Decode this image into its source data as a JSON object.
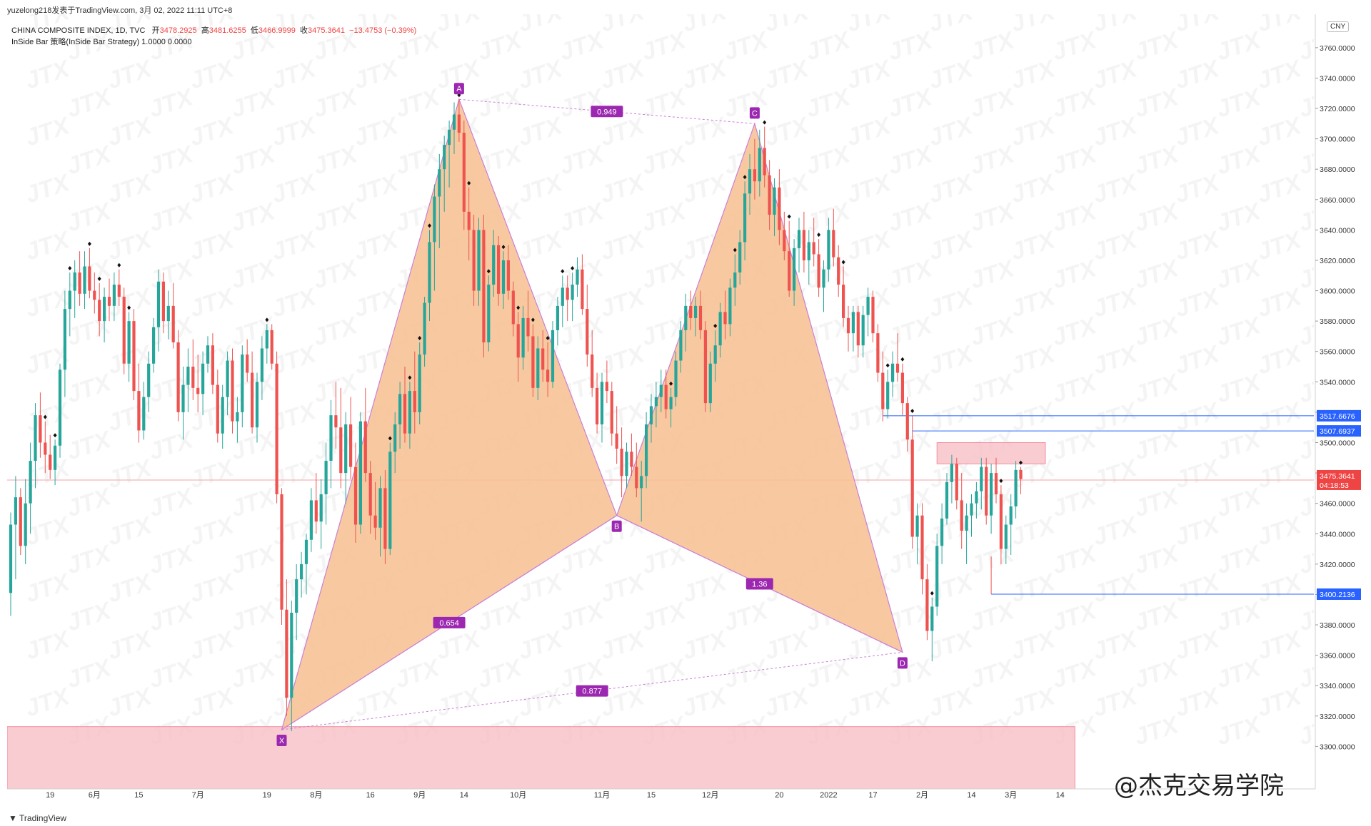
{
  "header": {
    "publisher": "yuzelong218发表于TradingView.com,  3月 02, 2022 11:11 UTC+8",
    "symbol_line": "CHINA COMPOSITE INDEX, 1D, TVC",
    "ohlc": {
      "open_label": "开",
      "open": "3478.2925",
      "high_label": "高",
      "high": "3481.6255",
      "low_label": "低",
      "low": "3466.9999",
      "close_label": "收",
      "close": "3475.3641",
      "change": "−13.4753 (−0.39%)"
    },
    "indicator_line": "InSide Bar 策略(InSide Bar Strategy)  1.0000  0.0000"
  },
  "currency_badge": "CNY",
  "footer_logo": "TradingView",
  "credit": "@杰克交易学院",
  "watermark_text": "JTX",
  "colors": {
    "up": "#26a69a",
    "down": "#ef5350",
    "pattern_fill": "#f7c08f",
    "pattern_stroke": "#c97fd6",
    "label_bg": "#9c27b0",
    "zone_fill": "#f8bfc6",
    "line_blue": "#2962ff",
    "price_red": "#ef4444"
  },
  "chart_data": {
    "type": "candlestick",
    "y_axis_ticks": [
      3300,
      3320,
      3340,
      3360,
      3380,
      3400,
      3420,
      3440,
      3460,
      3480,
      3500,
      3520,
      3540,
      3560,
      3580,
      3600,
      3620,
      3640,
      3660,
      3680,
      3700,
      3720,
      3740,
      3760
    ],
    "y_tick_format": "4dp",
    "ylim": [
      3272,
      3782
    ],
    "x_tick_labels": [
      {
        "index": 8,
        "label": "19"
      },
      {
        "index": 17,
        "label": "6月"
      },
      {
        "index": 26,
        "label": "15"
      },
      {
        "index": 38,
        "label": "7月"
      },
      {
        "index": 52,
        "label": "19"
      },
      {
        "index": 62,
        "label": "8月"
      },
      {
        "index": 73,
        "label": "16"
      },
      {
        "index": 83,
        "label": "9月"
      },
      {
        "index": 92,
        "label": "14"
      },
      {
        "index": 103,
        "label": "10月"
      },
      {
        "index": 120,
        "label": "11月"
      },
      {
        "index": 130,
        "label": "15"
      },
      {
        "index": 142,
        "label": "12月"
      },
      {
        "index": 156,
        "label": "20"
      },
      {
        "index": 166,
        "label": "2022"
      },
      {
        "index": 175,
        "label": "17"
      },
      {
        "index": 185,
        "label": "2月"
      },
      {
        "index": 195,
        "label": "14"
      },
      {
        "index": 203,
        "label": "3月"
      },
      {
        "index": 213,
        "label": "14"
      }
    ],
    "candles_ohlc": [
      [
        3401,
        3454,
        3386,
        3446
      ],
      [
        3446,
        3478,
        3410,
        3464
      ],
      [
        3464,
        3470,
        3426,
        3432
      ],
      [
        3432,
        3476,
        3420,
        3460
      ],
      [
        3460,
        3500,
        3440,
        3488
      ],
      [
        3488,
        3526,
        3470,
        3518
      ],
      [
        3518,
        3533,
        3490,
        3500
      ],
      [
        3500,
        3514,
        3480,
        3492
      ],
      [
        3492,
        3505,
        3476,
        3482
      ],
      [
        3482,
        3502,
        3472,
        3498
      ],
      [
        3498,
        3552,
        3490,
        3548
      ],
      [
        3548,
        3600,
        3530,
        3588
      ],
      [
        3588,
        3612,
        3570,
        3600
      ],
      [
        3600,
        3620,
        3582,
        3612
      ],
      [
        3612,
        3626,
        3590,
        3598
      ],
      [
        3598,
        3626,
        3588,
        3616
      ],
      [
        3616,
        3628,
        3595,
        3600
      ],
      [
        3600,
        3612,
        3585,
        3594
      ],
      [
        3594,
        3605,
        3570,
        3580
      ],
      [
        3580,
        3602,
        3566,
        3596
      ],
      [
        3596,
        3608,
        3580,
        3590
      ],
      [
        3590,
        3612,
        3580,
        3604
      ],
      [
        3604,
        3614,
        3590,
        3596
      ],
      [
        3596,
        3602,
        3545,
        3552
      ],
      [
        3552,
        3586,
        3540,
        3580
      ],
      [
        3580,
        3588,
        3528,
        3534
      ],
      [
        3534,
        3552,
        3500,
        3508
      ],
      [
        3508,
        3540,
        3502,
        3530
      ],
      [
        3530,
        3560,
        3520,
        3552
      ],
      [
        3552,
        3582,
        3546,
        3576
      ],
      [
        3576,
        3614,
        3560,
        3606
      ],
      [
        3606,
        3612,
        3572,
        3580
      ],
      [
        3580,
        3600,
        3568,
        3590
      ],
      [
        3590,
        3605,
        3562,
        3566
      ],
      [
        3566,
        3574,
        3514,
        3520
      ],
      [
        3520,
        3550,
        3502,
        3538
      ],
      [
        3538,
        3562,
        3520,
        3550
      ],
      [
        3550,
        3568,
        3528,
        3536
      ],
      [
        3536,
        3558,
        3520,
        3532
      ],
      [
        3532,
        3560,
        3518,
        3552
      ],
      [
        3552,
        3570,
        3546,
        3564
      ],
      [
        3564,
        3572,
        3532,
        3538
      ],
      [
        3538,
        3548,
        3500,
        3506
      ],
      [
        3506,
        3538,
        3496,
        3530
      ],
      [
        3530,
        3560,
        3518,
        3554
      ],
      [
        3554,
        3562,
        3506,
        3514
      ],
      [
        3514,
        3530,
        3500,
        3520
      ],
      [
        3520,
        3564,
        3510,
        3558
      ],
      [
        3558,
        3568,
        3540,
        3546
      ],
      [
        3546,
        3560,
        3506,
        3510
      ],
      [
        3510,
        3546,
        3500,
        3540
      ],
      [
        3540,
        3570,
        3528,
        3562
      ],
      [
        3562,
        3578,
        3552,
        3574
      ],
      [
        3574,
        3578,
        3548,
        3552
      ],
      [
        3552,
        3560,
        3460,
        3466
      ],
      [
        3466,
        3470,
        3380,
        3390
      ],
      [
        3390,
        3410,
        3320,
        3332
      ],
      [
        3332,
        3396,
        3310,
        3388
      ],
      [
        3388,
        3420,
        3370,
        3410
      ],
      [
        3410,
        3428,
        3398,
        3420
      ],
      [
        3420,
        3440,
        3400,
        3436
      ],
      [
        3436,
        3470,
        3428,
        3462
      ],
      [
        3462,
        3480,
        3440,
        3448
      ],
      [
        3448,
        3476,
        3430,
        3466
      ],
      [
        3466,
        3500,
        3446,
        3488
      ],
      [
        3488,
        3528,
        3470,
        3518
      ],
      [
        3518,
        3540,
        3496,
        3510
      ],
      [
        3510,
        3536,
        3470,
        3480
      ],
      [
        3480,
        3520,
        3460,
        3512
      ],
      [
        3512,
        3530,
        3476,
        3484
      ],
      [
        3484,
        3500,
        3434,
        3446
      ],
      [
        3446,
        3520,
        3440,
        3514
      ],
      [
        3514,
        3536,
        3474,
        3480
      ],
      [
        3480,
        3488,
        3440,
        3452
      ],
      [
        3452,
        3474,
        3436,
        3444
      ],
      [
        3444,
        3478,
        3425,
        3470
      ],
      [
        3470,
        3482,
        3420,
        3430
      ],
      [
        3430,
        3500,
        3426,
        3494
      ],
      [
        3494,
        3520,
        3480,
        3512
      ],
      [
        3512,
        3540,
        3496,
        3532
      ],
      [
        3532,
        3550,
        3500,
        3506
      ],
      [
        3506,
        3540,
        3496,
        3534
      ],
      [
        3534,
        3560,
        3506,
        3520
      ],
      [
        3520,
        3566,
        3512,
        3558
      ],
      [
        3558,
        3596,
        3550,
        3592
      ],
      [
        3592,
        3640,
        3580,
        3632
      ],
      [
        3632,
        3670,
        3600,
        3662
      ],
      [
        3662,
        3690,
        3628,
        3680
      ],
      [
        3680,
        3702,
        3652,
        3696
      ],
      [
        3696,
        3712,
        3668,
        3706
      ],
      [
        3706,
        3724,
        3690,
        3716
      ],
      [
        3716,
        3726,
        3698,
        3704
      ],
      [
        3704,
        3712,
        3640,
        3652
      ],
      [
        3652,
        3668,
        3620,
        3640
      ],
      [
        3640,
        3650,
        3590,
        3600
      ],
      [
        3600,
        3648,
        3590,
        3640
      ],
      [
        3640,
        3650,
        3556,
        3566
      ],
      [
        3566,
        3610,
        3560,
        3604
      ],
      [
        3604,
        3640,
        3596,
        3630
      ],
      [
        3630,
        3636,
        3590,
        3598
      ],
      [
        3598,
        3626,
        3588,
        3620
      ],
      [
        3620,
        3630,
        3594,
        3600
      ],
      [
        3600,
        3606,
        3570,
        3578
      ],
      [
        3578,
        3586,
        3540,
        3556
      ],
      [
        3556,
        3590,
        3548,
        3582
      ],
      [
        3582,
        3600,
        3560,
        3570
      ],
      [
        3570,
        3578,
        3530,
        3536
      ],
      [
        3536,
        3570,
        3528,
        3562
      ],
      [
        3562,
        3574,
        3540,
        3548
      ],
      [
        3548,
        3566,
        3530,
        3540
      ],
      [
        3540,
        3580,
        3536,
        3574
      ],
      [
        3574,
        3596,
        3564,
        3590
      ],
      [
        3590,
        3610,
        3576,
        3602
      ],
      [
        3602,
        3610,
        3580,
        3594
      ],
      [
        3594,
        3612,
        3580,
        3604
      ],
      [
        3604,
        3622,
        3596,
        3614
      ],
      [
        3614,
        3624,
        3584,
        3588
      ],
      [
        3588,
        3604,
        3550,
        3558
      ],
      [
        3558,
        3574,
        3530,
        3536
      ],
      [
        3536,
        3546,
        3506,
        3512
      ],
      [
        3512,
        3546,
        3500,
        3540
      ],
      [
        3540,
        3554,
        3526,
        3534
      ],
      [
        3534,
        3540,
        3498,
        3506
      ],
      [
        3506,
        3524,
        3486,
        3496
      ],
      [
        3496,
        3510,
        3464,
        3478
      ],
      [
        3478,
        3500,
        3470,
        3494
      ],
      [
        3494,
        3506,
        3478,
        3484
      ],
      [
        3484,
        3500,
        3464,
        3470
      ],
      [
        3470,
        3488,
        3448,
        3478
      ],
      [
        3478,
        3520,
        3470,
        3512
      ],
      [
        3512,
        3532,
        3500,
        3524
      ],
      [
        3524,
        3540,
        3510,
        3530
      ],
      [
        3530,
        3548,
        3520,
        3538
      ],
      [
        3538,
        3548,
        3516,
        3522
      ],
      [
        3522,
        3536,
        3510,
        3530
      ],
      [
        3530,
        3560,
        3524,
        3554
      ],
      [
        3554,
        3580,
        3546,
        3574
      ],
      [
        3574,
        3598,
        3560,
        3590
      ],
      [
        3590,
        3600,
        3574,
        3582
      ],
      [
        3582,
        3596,
        3570,
        3590
      ],
      [
        3590,
        3600,
        3568,
        3574
      ],
      [
        3574,
        3580,
        3520,
        3526
      ],
      [
        3526,
        3560,
        3520,
        3552
      ],
      [
        3552,
        3574,
        3540,
        3564
      ],
      [
        3564,
        3592,
        3556,
        3586
      ],
      [
        3586,
        3600,
        3568,
        3578
      ],
      [
        3578,
        3608,
        3570,
        3602
      ],
      [
        3602,
        3624,
        3590,
        3612
      ],
      [
        3612,
        3640,
        3604,
        3632
      ],
      [
        3632,
        3672,
        3620,
        3664
      ],
      [
        3664,
        3690,
        3650,
        3680
      ],
      [
        3680,
        3700,
        3660,
        3672
      ],
      [
        3672,
        3706,
        3662,
        3694
      ],
      [
        3694,
        3708,
        3668,
        3676
      ],
      [
        3676,
        3686,
        3640,
        3650
      ],
      [
        3650,
        3674,
        3636,
        3668
      ],
      [
        3668,
        3680,
        3630,
        3640
      ],
      [
        3640,
        3652,
        3620,
        3626
      ],
      [
        3626,
        3646,
        3596,
        3600
      ],
      [
        3600,
        3634,
        3590,
        3628
      ],
      [
        3628,
        3648,
        3612,
        3640
      ],
      [
        3640,
        3652,
        3612,
        3620
      ],
      [
        3620,
        3640,
        3604,
        3632
      ],
      [
        3632,
        3648,
        3616,
        3624
      ],
      [
        3624,
        3634,
        3596,
        3602
      ],
      [
        3602,
        3620,
        3586,
        3614
      ],
      [
        3614,
        3648,
        3606,
        3640
      ],
      [
        3640,
        3654,
        3616,
        3622
      ],
      [
        3622,
        3630,
        3596,
        3604
      ],
      [
        3604,
        3616,
        3576,
        3582
      ],
      [
        3582,
        3590,
        3560,
        3572
      ],
      [
        3572,
        3590,
        3560,
        3586
      ],
      [
        3586,
        3590,
        3556,
        3564
      ],
      [
        3564,
        3590,
        3556,
        3584
      ],
      [
        3584,
        3602,
        3570,
        3596
      ],
      [
        3596,
        3600,
        3566,
        3572
      ],
      [
        3572,
        3578,
        3540,
        3546
      ],
      [
        3546,
        3560,
        3514,
        3522
      ],
      [
        3522,
        3548,
        3516,
        3540
      ],
      [
        3540,
        3560,
        3530,
        3552
      ],
      [
        3552,
        3572,
        3540,
        3546
      ],
      [
        3546,
        3552,
        3518,
        3526
      ],
      [
        3526,
        3530,
        3494,
        3502
      ],
      [
        3502,
        3518,
        3430,
        3438
      ],
      [
        3438,
        3460,
        3420,
        3452
      ],
      [
        3452,
        3460,
        3400,
        3410
      ],
      [
        3410,
        3420,
        3370,
        3376
      ],
      [
        3376,
        3398,
        3356,
        3392
      ],
      [
        3392,
        3440,
        3386,
        3432
      ],
      [
        3432,
        3460,
        3420,
        3450
      ],
      [
        3450,
        3480,
        3446,
        3474
      ],
      [
        3474,
        3492,
        3460,
        3486
      ],
      [
        3486,
        3490,
        3456,
        3462
      ],
      [
        3462,
        3480,
        3430,
        3442
      ],
      [
        3442,
        3460,
        3420,
        3452
      ],
      [
        3452,
        3466,
        3438,
        3460
      ],
      [
        3460,
        3474,
        3450,
        3468
      ],
      [
        3468,
        3490,
        3456,
        3484
      ],
      [
        3484,
        3490,
        3446,
        3452
      ],
      [
        3452,
        3486,
        3440,
        3480
      ],
      [
        3480,
        3490,
        3460,
        3466
      ],
      [
        3466,
        3472,
        3420,
        3430
      ],
      [
        3430,
        3452,
        3420,
        3446
      ],
      [
        3446,
        3466,
        3426,
        3458
      ],
      [
        3458,
        3488,
        3450,
        3482
      ],
      [
        3482,
        3484,
        3466,
        3476
      ]
    ],
    "harmonic_pattern": {
      "type": "bat",
      "points": [
        {
          "label": "X",
          "index": 55,
          "price": 3311
        },
        {
          "label": "A",
          "index": 91,
          "price": 3726
        },
        {
          "label": "B",
          "index": 123,
          "price": 3452
        },
        {
          "label": "C",
          "index": 151,
          "price": 3710
        },
        {
          "label": "D",
          "index": 181,
          "price": 3362
        }
      ],
      "ratios": [
        {
          "label": "0.654",
          "from": "X",
          "to": "B"
        },
        {
          "label": "0.949",
          "from": "A",
          "to": "C"
        },
        {
          "label": "1.36",
          "from": "B",
          "to": "D"
        },
        {
          "label": "0.877",
          "from": "X",
          "to": "D"
        }
      ]
    },
    "zones": [
      {
        "name": "demand-zone",
        "from_index": -10,
        "to_index": 216,
        "low": 3272,
        "high": 3313
      },
      {
        "name": "supply-zone",
        "from_index": 188,
        "to_index": 210,
        "low": 3486,
        "high": 3500
      }
    ],
    "horizontal_levels": [
      {
        "price": 3517.6676,
        "label": "3517.6676",
        "from_index": 177
      },
      {
        "price": 3507.6937,
        "label": "3507.6937",
        "from_index": 183
      },
      {
        "price": 3400.2136,
        "label": "3400.2136",
        "from_index": 199
      }
    ],
    "current_price": {
      "price": 3475.3641,
      "label": "3475.3641",
      "timer": "04:18:53"
    },
    "inside_bar_marks": [
      7,
      9,
      12,
      16,
      18,
      22,
      24,
      52,
      77,
      81,
      83,
      85,
      91,
      93,
      97,
      100,
      103,
      106,
      109,
      112,
      114,
      134,
      143,
      147,
      149,
      153,
      158,
      164,
      169,
      178,
      181,
      183,
      187,
      201,
      205
    ]
  }
}
